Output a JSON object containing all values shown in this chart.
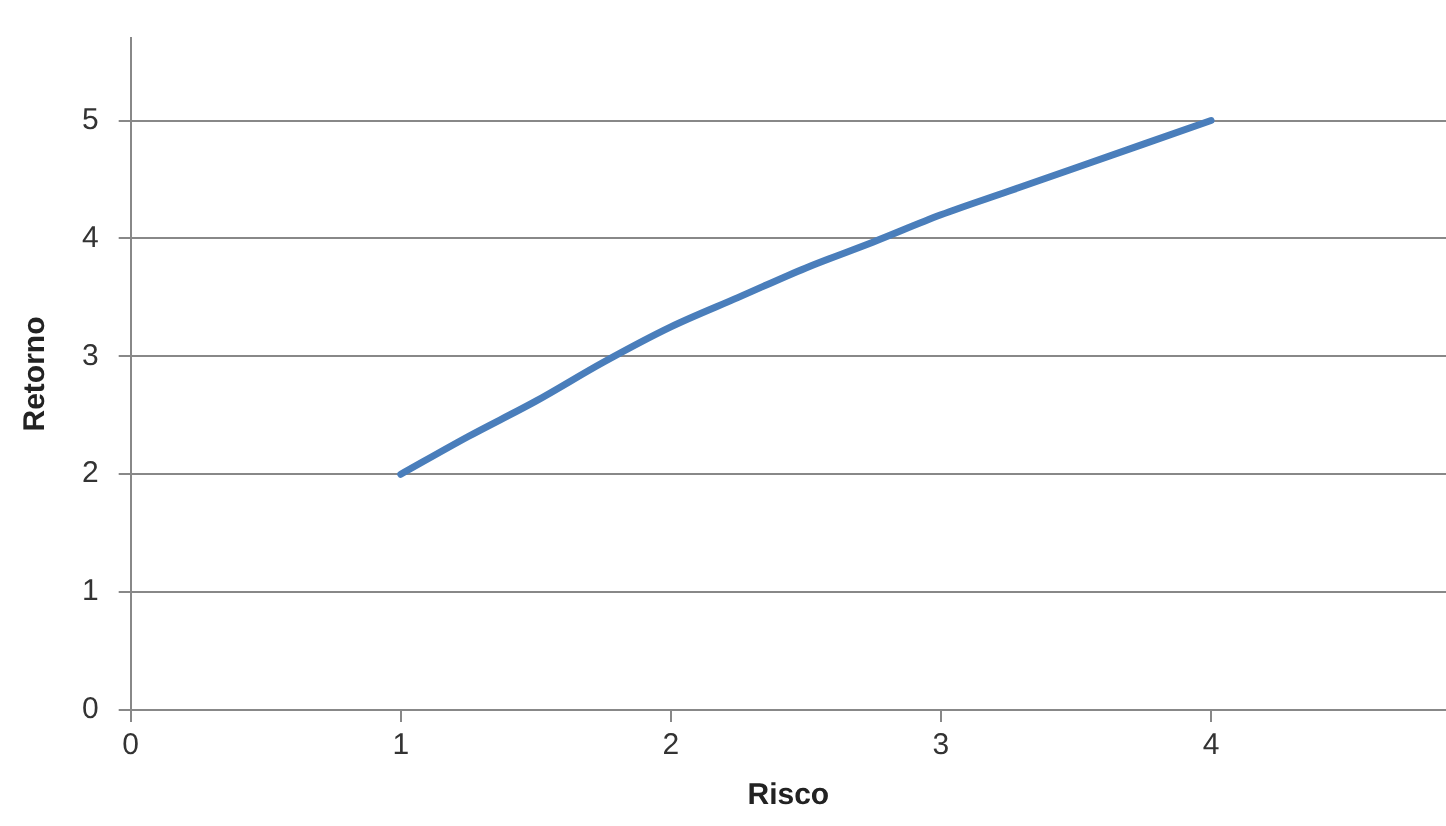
{
  "chart_data": {
    "type": "line",
    "xlabel": "Risco",
    "ylabel": "Retorno",
    "x": [
      1,
      1.25,
      1.5,
      1.75,
      2,
      2.25,
      2.5,
      2.75,
      3,
      3.25,
      3.5,
      3.75,
      4
    ],
    "series": [
      {
        "color": "#4a7ebb",
        "values": [
          2,
          2.32,
          2.62,
          2.95,
          3.25,
          3.5,
          3.75,
          3.97,
          4.2,
          4.4,
          4.6,
          4.8,
          5
        ]
      }
    ],
    "xlim": [
      0,
      4.87
    ],
    "xticks": [
      0,
      1,
      2,
      3,
      4
    ],
    "ylim": [
      0,
      5.7
    ],
    "yticks": [
      0,
      1,
      2,
      3,
      4,
      5
    ],
    "grid": "y",
    "legend": false,
    "marker": "none",
    "line_style": "solid"
  }
}
